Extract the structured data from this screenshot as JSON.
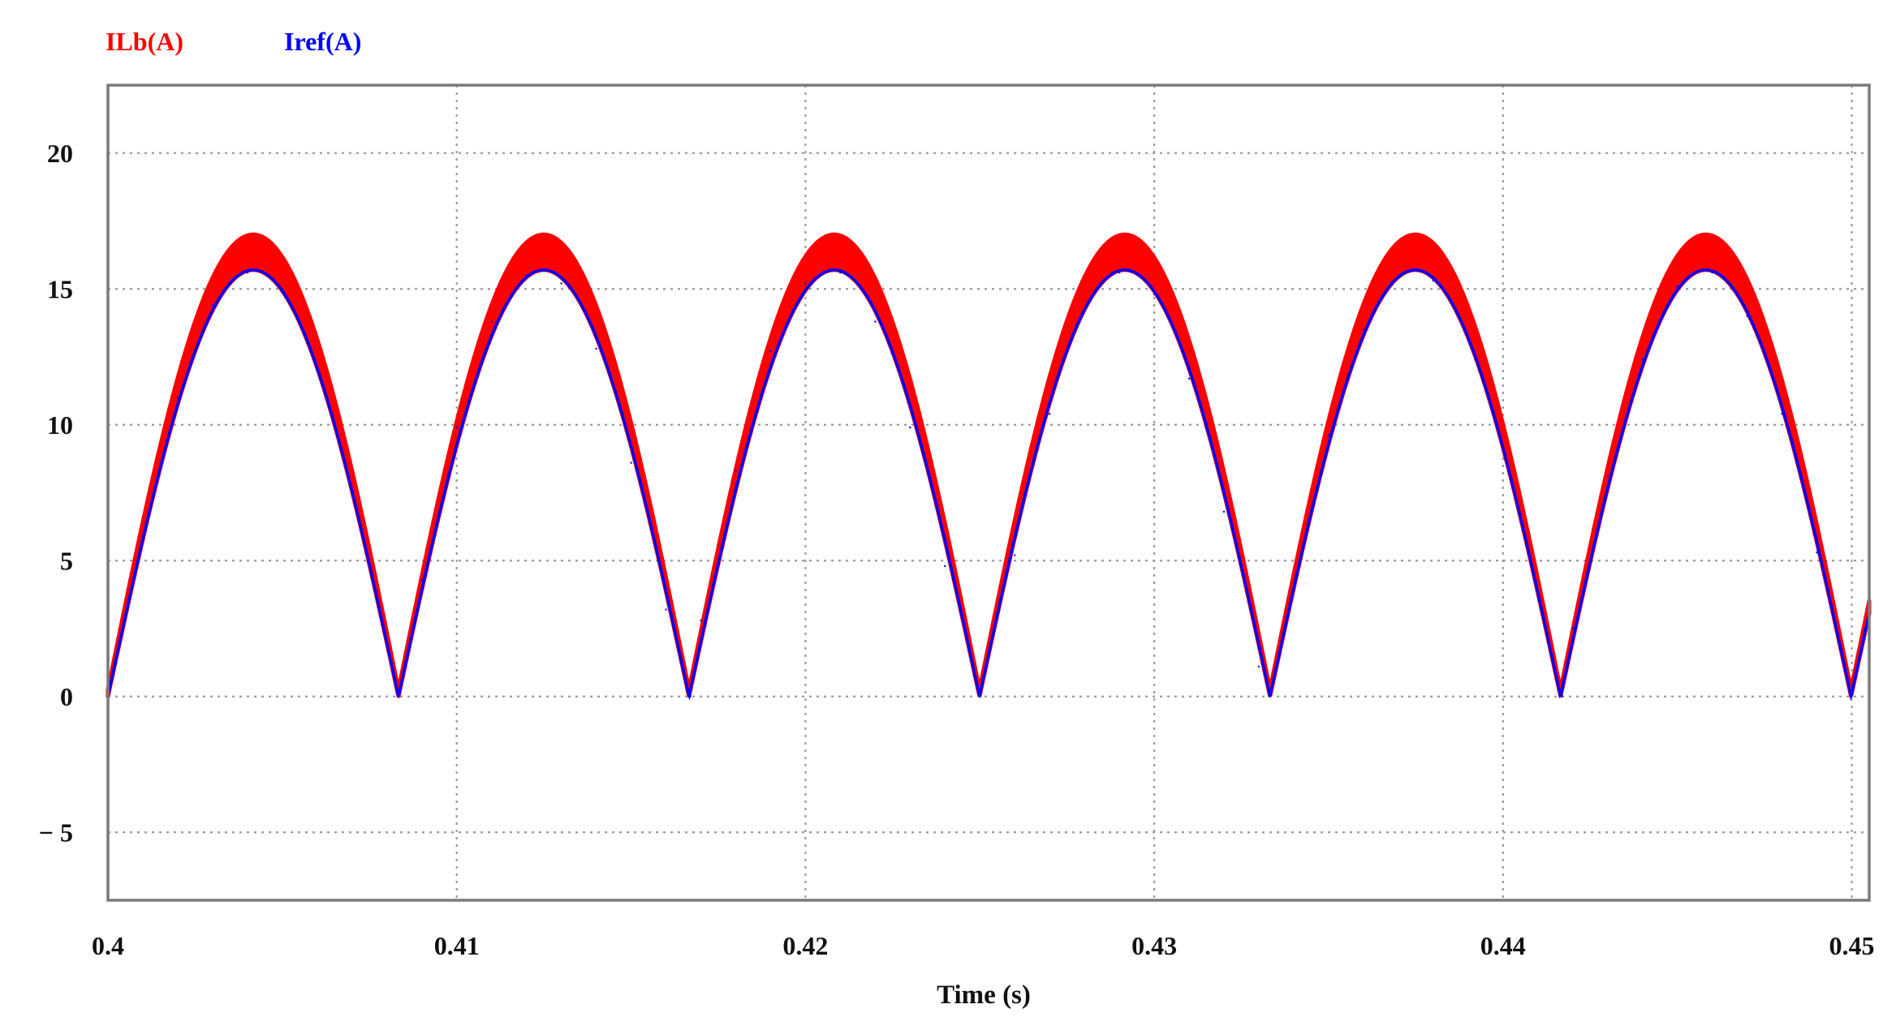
{
  "chart_data": {
    "type": "line",
    "title": "",
    "xlabel": "Time (s)",
    "ylabel": "",
    "xlim": [
      0.4,
      0.4505
    ],
    "ylim": [
      -7.5,
      22.5
    ],
    "xticks": [
      0.4,
      0.41,
      0.42,
      0.43,
      0.44,
      0.45
    ],
    "xtick_labels": [
      "0.4",
      "0.41",
      "0.42",
      "0.43",
      "0.44",
      "0.45"
    ],
    "yticks": [
      -5,
      0,
      5,
      10,
      15,
      20
    ],
    "ytick_labels": [
      "− 5",
      "0",
      "5",
      "10",
      "15",
      "20"
    ],
    "grid": true,
    "legend_position": "top-left",
    "period": 0.00833,
    "series": [
      {
        "name": "ILb(A)",
        "color": "#ff0000",
        "shape": "rectified sine with switching ripple band",
        "x": [
          0.4,
          0.401,
          0.402,
          0.403,
          0.404,
          0.4042,
          0.405,
          0.406,
          0.407,
          0.408,
          0.4083,
          0.409,
          0.41,
          0.411,
          0.412,
          0.4125,
          0.413,
          0.414,
          0.415,
          0.416,
          0.4167,
          0.417,
          0.418,
          0.419,
          0.42,
          0.4208,
          0.421,
          0.422,
          0.423,
          0.424,
          0.425,
          0.425,
          0.426,
          0.427,
          0.428,
          0.429,
          0.4292,
          0.43,
          0.431,
          0.432,
          0.433,
          0.4333,
          0.434,
          0.435,
          0.436,
          0.437,
          0.4375,
          0.438,
          0.439,
          0.44,
          0.441,
          0.4417,
          0.442,
          0.443,
          0.444,
          0.445,
          0.4458,
          0.446,
          0.447,
          0.448,
          0.449,
          0.45,
          0.4505
        ],
        "upper": [
          0.5,
          6.8,
          12.2,
          15.7,
          16.9,
          17.0,
          16.4,
          13.6,
          9.0,
          3.3,
          0.5,
          5.5,
          11.1,
          15.0,
          16.8,
          17.0,
          16.6,
          14.3,
          10.1,
          4.6,
          0.5,
          4.0,
          9.7,
          14.0,
          16.6,
          17.0,
          16.9,
          15.2,
          11.4,
          6.1,
          0.5,
          0.5,
          6.4,
          11.7,
          15.5,
          16.9,
          17.0,
          16.2,
          13.2,
          8.3,
          2.4,
          0.5,
          5.2,
          10.8,
          14.8,
          16.8,
          17.0,
          16.7,
          14.6,
          10.6,
          5.1,
          0.5,
          3.7,
          9.3,
          13.7,
          16.5,
          17.0,
          16.9,
          15.4,
          11.9,
          6.7,
          0.9,
          0.5
        ],
        "lower": [
          0.0,
          5.8,
          11.0,
          14.4,
          15.6,
          15.7,
          15.0,
          12.1,
          7.6,
          2.0,
          0.0,
          4.3,
          9.9,
          13.8,
          15.5,
          15.7,
          15.2,
          12.8,
          8.6,
          3.2,
          0.0,
          2.8,
          8.3,
          12.7,
          15.2,
          15.7,
          15.6,
          13.8,
          9.9,
          4.8,
          0.0,
          0.0,
          5.2,
          10.4,
          14.2,
          15.6,
          15.7,
          14.8,
          11.7,
          6.8,
          1.1,
          0.0,
          4.0,
          9.6,
          13.5,
          15.5,
          15.7,
          15.3,
          13.1,
          9.1,
          3.7,
          0.0,
          2.5,
          8.1,
          12.4,
          15.1,
          15.7,
          15.6,
          14.0,
          10.4,
          5.3,
          0.0,
          0.0
        ]
      },
      {
        "name": "Iref(A)",
        "color": "#0000ff",
        "shape": "rectified sine",
        "x": [
          0.4,
          0.401,
          0.402,
          0.403,
          0.404,
          0.4042,
          0.405,
          0.406,
          0.407,
          0.408,
          0.4083,
          0.409,
          0.41,
          0.411,
          0.412,
          0.4125,
          0.413,
          0.414,
          0.415,
          0.416,
          0.4167,
          0.417,
          0.418,
          0.419,
          0.42,
          0.4208,
          0.421,
          0.422,
          0.423,
          0.424,
          0.425,
          0.425,
          0.426,
          0.427,
          0.428,
          0.429,
          0.4292,
          0.43,
          0.431,
          0.432,
          0.433,
          0.4333,
          0.434,
          0.435,
          0.436,
          0.437,
          0.4375,
          0.438,
          0.439,
          0.44,
          0.441,
          0.4417,
          0.442,
          0.443,
          0.444,
          0.445,
          0.4458,
          0.446,
          0.447,
          0.448,
          0.449,
          0.45,
          0.4505
        ],
        "values": [
          0.0,
          5.8,
          11.0,
          14.4,
          15.6,
          15.7,
          15.0,
          12.1,
          7.6,
          2.0,
          0.0,
          4.3,
          9.9,
          13.8,
          15.5,
          15.7,
          15.2,
          12.8,
          8.6,
          3.2,
          0.0,
          2.8,
          8.3,
          12.7,
          15.2,
          15.7,
          15.6,
          13.8,
          9.9,
          4.8,
          0.0,
          0.0,
          5.2,
          10.4,
          14.2,
          15.6,
          15.7,
          14.8,
          11.7,
          6.8,
          1.1,
          0.0,
          4.0,
          9.6,
          13.5,
          15.5,
          15.7,
          15.3,
          13.1,
          9.1,
          3.7,
          0.0,
          2.5,
          8.1,
          12.4,
          15.1,
          15.7,
          15.6,
          14.0,
          10.4,
          5.3,
          0.0,
          0.0
        ]
      }
    ]
  }
}
